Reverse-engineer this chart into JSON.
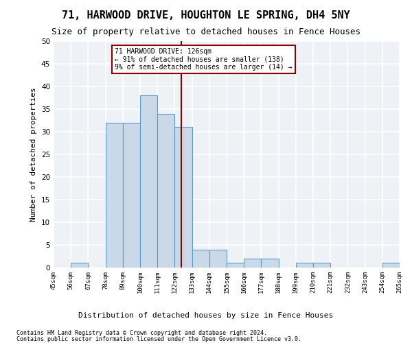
{
  "title1": "71, HARWOOD DRIVE, HOUGHTON LE SPRING, DH4 5NY",
  "title2": "Size of property relative to detached houses in Fence Houses",
  "xlabel": "Distribution of detached houses by size in Fence Houses",
  "ylabel": "Number of detached properties",
  "bin_edges": [
    45,
    56,
    67,
    78,
    89,
    100,
    111,
    122,
    133,
    144,
    155,
    166,
    177,
    188,
    199,
    210,
    221,
    232,
    243,
    254,
    265
  ],
  "bar_heights": [
    0,
    1,
    0,
    32,
    32,
    38,
    34,
    31,
    4,
    4,
    1,
    2,
    2,
    0,
    1,
    1,
    0,
    0,
    0,
    1
  ],
  "bar_color": "#c9d9e8",
  "bar_edge_color": "#5b9bd5",
  "property_size": 126,
  "vline_color": "#8b0000",
  "annotation_text": "71 HARWOOD DRIVE: 126sqm\n← 91% of detached houses are smaller (138)\n9% of semi-detached houses are larger (14) →",
  "annotation_box_color": "#8b0000",
  "ylim": [
    0,
    50
  ],
  "yticks": [
    0,
    5,
    10,
    15,
    20,
    25,
    30,
    35,
    40,
    45,
    50
  ],
  "footnote1": "Contains HM Land Registry data © Crown copyright and database right 2024.",
  "footnote2": "Contains public sector information licensed under the Open Government Licence v3.0.",
  "background_color": "#eef2f7",
  "grid_color": "#ffffff",
  "title1_fontsize": 11,
  "title2_fontsize": 9,
  "tick_labels": [
    "45sqm",
    "56sqm",
    "67sqm",
    "78sqm",
    "89sqm",
    "100sqm",
    "111sqm",
    "122sqm",
    "133sqm",
    "144sqm",
    "155sqm",
    "166sqm",
    "177sqm",
    "188sqm",
    "199sqm",
    "210sqm",
    "221sqm",
    "232sqm",
    "243sqm",
    "254sqm",
    "265sqm"
  ]
}
